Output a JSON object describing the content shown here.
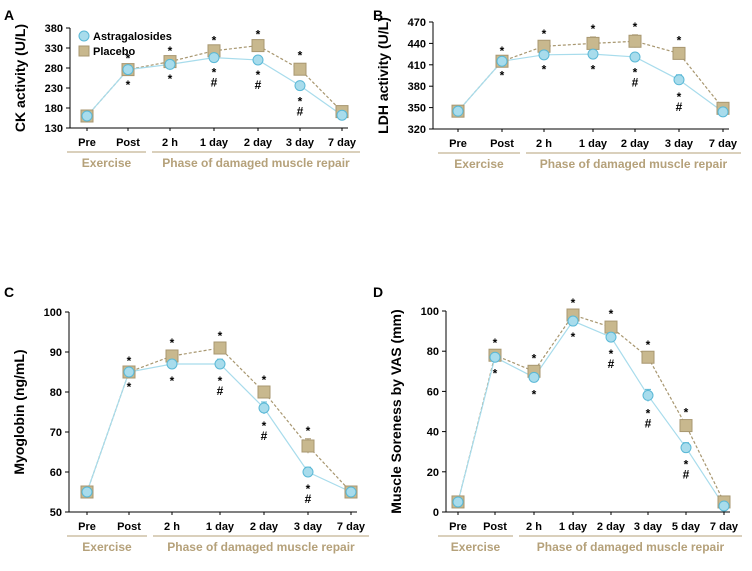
{
  "colors": {
    "astragalosides": "#a8dcec",
    "astragalosides_edge": "#5ab8d6",
    "placebo": "#c8b88e",
    "placebo_edge": "#a89770",
    "phase": "#b5a17a"
  },
  "legend": {
    "series1": "Astragalosides",
    "series2": "Placebo"
  },
  "phase_labels": {
    "exercise": "Exercise",
    "repair": "Phase of damaged muscle repair"
  },
  "chart_data": [
    {
      "type": "line",
      "panel": "A",
      "ylabel": "CK activity (U/L)",
      "ylim": [
        130,
        380
      ],
      "yticks": [
        "130",
        "180",
        "230",
        "280",
        "330",
        "380"
      ],
      "categories": [
        "Pre",
        "Post",
        "2 h",
        "1 day",
        "2 day",
        "3 day",
        "7 day"
      ],
      "series": [
        {
          "name": "Astragalosides",
          "values": [
            160,
            276,
            289,
            306,
            300,
            236,
            162
          ],
          "errors": [
            3,
            8,
            6,
            7,
            7,
            10,
            5
          ]
        },
        {
          "name": "Placebo",
          "values": [
            160,
            276,
            296,
            323,
            336,
            277,
            171
          ],
          "errors": [
            3,
            6,
            6,
            6,
            8,
            14,
            8
          ]
        }
      ],
      "annotations": [
        {
          "index": 1,
          "above": "*",
          "below": "*"
        },
        {
          "index": 2,
          "above": "*",
          "below": "*"
        },
        {
          "index": 3,
          "above": "*",
          "below": "*\n#"
        },
        {
          "index": 4,
          "above": "*",
          "below": "*\n#"
        },
        {
          "index": 5,
          "above": "*",
          "below": "*\n#"
        }
      ]
    },
    {
      "type": "line",
      "panel": "B",
      "ylabel": "LDH activity (U/L)",
      "ylim": [
        320,
        470
      ],
      "yticks": [
        "320",
        "350",
        "380",
        "410",
        "440",
        "470"
      ],
      "categories": [
        "Pre",
        "Post",
        "2 h",
        "1 day",
        "2 day",
        "3 day",
        "7 day"
      ],
      "series": [
        {
          "name": "Astragalosides",
          "values": [
            345,
            415,
            424,
            425,
            421,
            389,
            344
          ],
          "errors": [
            3,
            3,
            4,
            5,
            5,
            7,
            3
          ]
        },
        {
          "name": "Placebo",
          "values": [
            345,
            415,
            436,
            440,
            443,
            426,
            349
          ],
          "errors": [
            3,
            3,
            6,
            9,
            9,
            7,
            6
          ]
        }
      ],
      "annotations": [
        {
          "index": 1,
          "above": "*",
          "below": "*"
        },
        {
          "index": 2,
          "above": "*",
          "below": "*"
        },
        {
          "index": 3,
          "above": "*",
          "below": "*"
        },
        {
          "index": 4,
          "above": "*",
          "below": "*\n#"
        },
        {
          "index": 5,
          "above": "*",
          "below": "*\n#"
        }
      ]
    },
    {
      "type": "line",
      "panel": "C",
      "ylabel": "Myoglobin (ng/mL)",
      "ylim": [
        50,
        100
      ],
      "yticks": [
        "50",
        "60",
        "70",
        "80",
        "90",
        "100"
      ],
      "categories": [
        "Pre",
        "Post",
        "2 h",
        "1 day",
        "2 day",
        "3 day",
        "7 day"
      ],
      "series": [
        {
          "name": "Astragalosides",
          "values": [
            55,
            85,
            87,
            87,
            76,
            60,
            55
          ],
          "errors": [
            0.6,
            0.8,
            1.2,
            1.2,
            1.5,
            1.2,
            0.6
          ]
        },
        {
          "name": "Placebo",
          "values": [
            55,
            85,
            89,
            91,
            80,
            66.5,
            55
          ],
          "errors": [
            0.6,
            0.8,
            1.2,
            1.0,
            1.0,
            1.8,
            0.6
          ]
        }
      ],
      "annotations": [
        {
          "index": 1,
          "above": "*",
          "below": "*"
        },
        {
          "index": 2,
          "above": "*",
          "below": "*"
        },
        {
          "index": 3,
          "above": "*",
          "below": "*\n#"
        },
        {
          "index": 4,
          "above": "*",
          "below": "*\n#"
        },
        {
          "index": 5,
          "above": "*",
          "below": "*\n#"
        }
      ]
    },
    {
      "type": "line",
      "panel": "D",
      "ylabel": "Muscle Soreness by VAS (mm)",
      "ylim": [
        0,
        100
      ],
      "yticks": [
        "0",
        "20",
        "40",
        "60",
        "80",
        "100"
      ],
      "categories": [
        "Pre",
        "Post",
        "2 h",
        "1 day",
        "2 day",
        "3 day",
        "5 day",
        "7 day"
      ],
      "series": [
        {
          "name": "Astragalosides",
          "values": [
            5,
            77,
            67,
            95,
            87,
            58,
            32,
            3
          ],
          "errors": [
            1.5,
            2,
            2.5,
            2,
            2.5,
            3,
            2.5,
            1.5
          ]
        },
        {
          "name": "Placebo",
          "values": [
            5,
            78,
            70,
            98,
            92,
            77,
            43,
            5
          ],
          "errors": [
            1.5,
            2,
            2.5,
            2,
            2.5,
            2,
            2.5,
            1.5
          ]
        }
      ],
      "annotations": [
        {
          "index": 1,
          "above": "*",
          "below": "*"
        },
        {
          "index": 2,
          "above": "*",
          "below": "*"
        },
        {
          "index": 3,
          "above": "*",
          "below": "*"
        },
        {
          "index": 4,
          "above": "*",
          "below": "*\n#"
        },
        {
          "index": 5,
          "above": "*",
          "below": "*\n#"
        },
        {
          "index": 6,
          "above": "*",
          "below": "*\n#"
        }
      ]
    }
  ]
}
